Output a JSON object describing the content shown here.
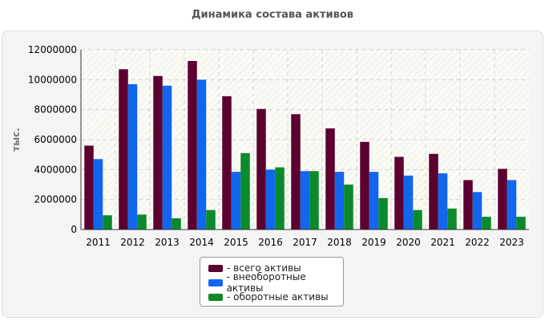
{
  "chart_data": {
    "type": "bar",
    "title": "Динамика состава активов",
    "xlabel": "",
    "ylabel": "тыс.",
    "ylim": [
      0,
      12000000
    ],
    "yticks": [
      "0",
      "2000000",
      "4000000",
      "6000000",
      "8000000",
      "10000000",
      "12000000"
    ],
    "categories": [
      "2011",
      "2012",
      "2013",
      "2014",
      "2015",
      "2016",
      "2017",
      "2018",
      "2019",
      "2020",
      "2021",
      "2022",
      "2023"
    ],
    "series": [
      {
        "name": "- всего активы",
        "color": "#5c0030",
        "values": [
          5600000,
          10700000,
          10250000,
          11250000,
          8900000,
          8050000,
          7700000,
          6750000,
          5850000,
          4850000,
          5050000,
          3300000,
          4050000
        ]
      },
      {
        "name": "- внеоборотные активы",
        "color": "#1166ee",
        "values": [
          4700000,
          9700000,
          9600000,
          10000000,
          3850000,
          4000000,
          3900000,
          3850000,
          3850000,
          3600000,
          3750000,
          2500000,
          3300000
        ]
      },
      {
        "name": "- оборотные активы",
        "color": "#0a8a2a",
        "values": [
          950000,
          1000000,
          750000,
          1300000,
          5100000,
          4150000,
          3900000,
          3000000,
          2100000,
          1300000,
          1400000,
          850000,
          850000
        ]
      }
    ],
    "grid": true,
    "legend_position": "bottom-center"
  }
}
